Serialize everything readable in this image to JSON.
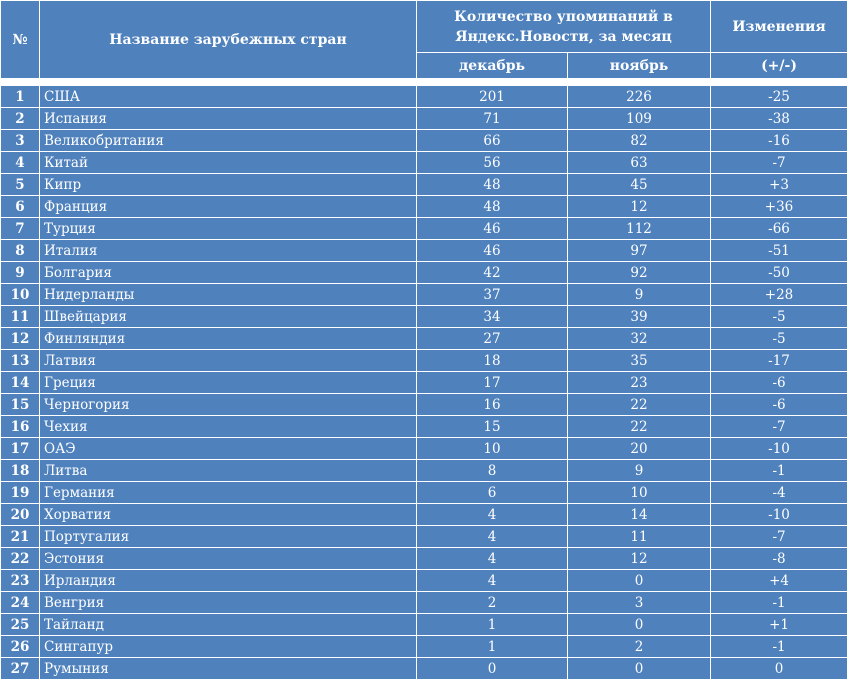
{
  "header": {
    "num_label": "№",
    "country_label": "Название зарубежных стран",
    "mentions_label": "Количество упоминаний в Яндекс.Новости, за месяц",
    "change_label": "Изменения",
    "december_label": "декабрь",
    "november_label": "ноябрь",
    "change_sign_label": "(+/-)"
  },
  "rows": [
    {
      "num": "1",
      "country": "США",
      "dec": "201",
      "nov": "226",
      "change": "-25"
    },
    {
      "num": "2",
      "country": "Испания",
      "dec": "71",
      "nov": "109",
      "change": "-38"
    },
    {
      "num": "3",
      "country": "Великобритания",
      "dec": "66",
      "nov": "82",
      "change": "-16"
    },
    {
      "num": "4",
      "country": "Китай",
      "dec": "56",
      "nov": "63",
      "change": "-7"
    },
    {
      "num": "5",
      "country": "Кипр",
      "dec": "48",
      "nov": "45",
      "change": "+3"
    },
    {
      "num": "6",
      "country": "Франция",
      "dec": "48",
      "nov": "12",
      "change": "+36"
    },
    {
      "num": "7",
      "country": "Турция",
      "dec": "46",
      "nov": "112",
      "change": "-66"
    },
    {
      "num": "8",
      "country": "Италия",
      "dec": "46",
      "nov": "97",
      "change": "-51"
    },
    {
      "num": "9",
      "country": "Болгария",
      "dec": "42",
      "nov": "92",
      "change": "-50"
    },
    {
      "num": "10",
      "country": "Нидерланды",
      "dec": "37",
      "nov": "9",
      "change": "+28"
    },
    {
      "num": "11",
      "country": "Швейцария",
      "dec": "34",
      "nov": "39",
      "change": "-5"
    },
    {
      "num": "12",
      "country": "Финляндия",
      "dec": "27",
      "nov": "32",
      "change": "-5"
    },
    {
      "num": "13",
      "country": "Латвия",
      "dec": "18",
      "nov": "35",
      "change": "-17"
    },
    {
      "num": "14",
      "country": "Греция",
      "dec": "17",
      "nov": "23",
      "change": "-6"
    },
    {
      "num": "15",
      "country": "Черногория",
      "dec": "16",
      "nov": "22",
      "change": "-6"
    },
    {
      "num": "16",
      "country": "Чехия",
      "dec": "15",
      "nov": "22",
      "change": "-7"
    },
    {
      "num": "17",
      "country": "ОАЭ",
      "dec": "10",
      "nov": "20",
      "change": "-10"
    },
    {
      "num": "18",
      "country": "Литва",
      "dec": "8",
      "nov": "9",
      "change": "-1"
    },
    {
      "num": "19",
      "country": "Германия",
      "dec": "6",
      "nov": "10",
      "change": "-4"
    },
    {
      "num": "20",
      "country": "Хорватия",
      "dec": "4",
      "nov": "14",
      "change": "-10"
    },
    {
      "num": "21",
      "country": "Португалия",
      "dec": "4",
      "nov": "11",
      "change": "-7"
    },
    {
      "num": "22",
      "country": "Эстония",
      "dec": "4",
      "nov": "12",
      "change": "-8"
    },
    {
      "num": "23",
      "country": "Ирландия",
      "dec": "4",
      "nov": "0",
      "change": "+4"
    },
    {
      "num": "24",
      "country": "Венгрия",
      "dec": "2",
      "nov": "3",
      "change": "-1"
    },
    {
      "num": "25",
      "country": "Тайланд",
      "dec": "1",
      "nov": "0",
      "change": "+1"
    },
    {
      "num": "26",
      "country": "Сингапур",
      "dec": "1",
      "nov": "2",
      "change": "-1"
    },
    {
      "num": "27",
      "country": "Румыния",
      "dec": "0",
      "nov": "0",
      "change": "0"
    }
  ],
  "colors": {
    "cell_background": "#4f81bd",
    "text": "#ffffff",
    "grid_lines": "#ffffff"
  }
}
